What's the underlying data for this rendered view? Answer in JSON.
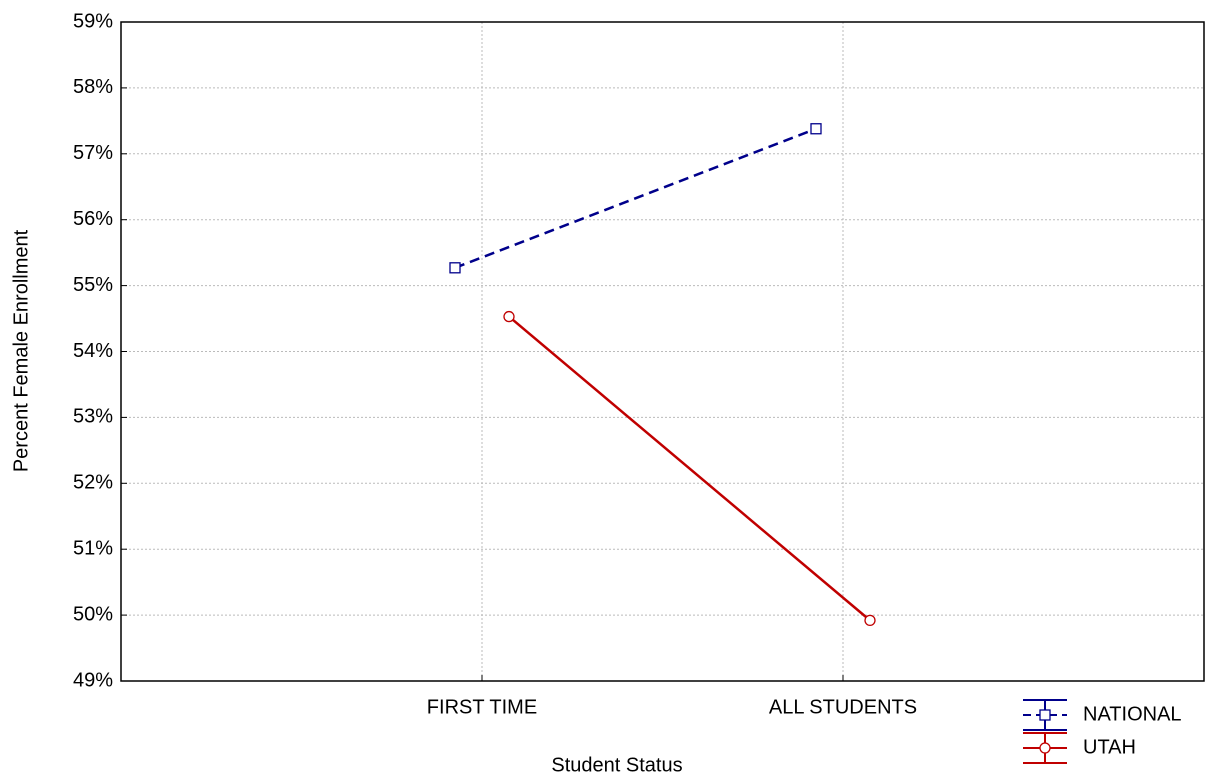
{
  "chart_data": {
    "type": "line",
    "x_label": "Student Status",
    "y_label": "Percent Female Enrollment",
    "categories": [
      "FIRST TIME",
      "ALL STUDENTS"
    ],
    "series": [
      {
        "name": "NATIONAL",
        "color": "#00008b",
        "dashed": true,
        "marker": "square",
        "values": [
          55.27,
          57.38
        ]
      },
      {
        "name": "UTAH",
        "color": "#c00000",
        "dashed": false,
        "marker": "circle",
        "values": [
          54.53,
          49.92
        ]
      }
    ],
    "ylim": [
      49,
      59
    ],
    "yticks": [
      {
        "value": 49,
        "label": "49%"
      },
      {
        "value": 50,
        "label": "50%"
      },
      {
        "value": 51,
        "label": "51%"
      },
      {
        "value": 52,
        "label": "52%"
      },
      {
        "value": 53,
        "label": "53%"
      },
      {
        "value": 54,
        "label": "54%"
      },
      {
        "value": 55,
        "label": "55%"
      },
      {
        "value": 56,
        "label": "56%"
      },
      {
        "value": 57,
        "label": "57%"
      },
      {
        "value": 58,
        "label": "58%"
      },
      {
        "value": 59,
        "label": "59%"
      }
    ],
    "grid": true
  }
}
